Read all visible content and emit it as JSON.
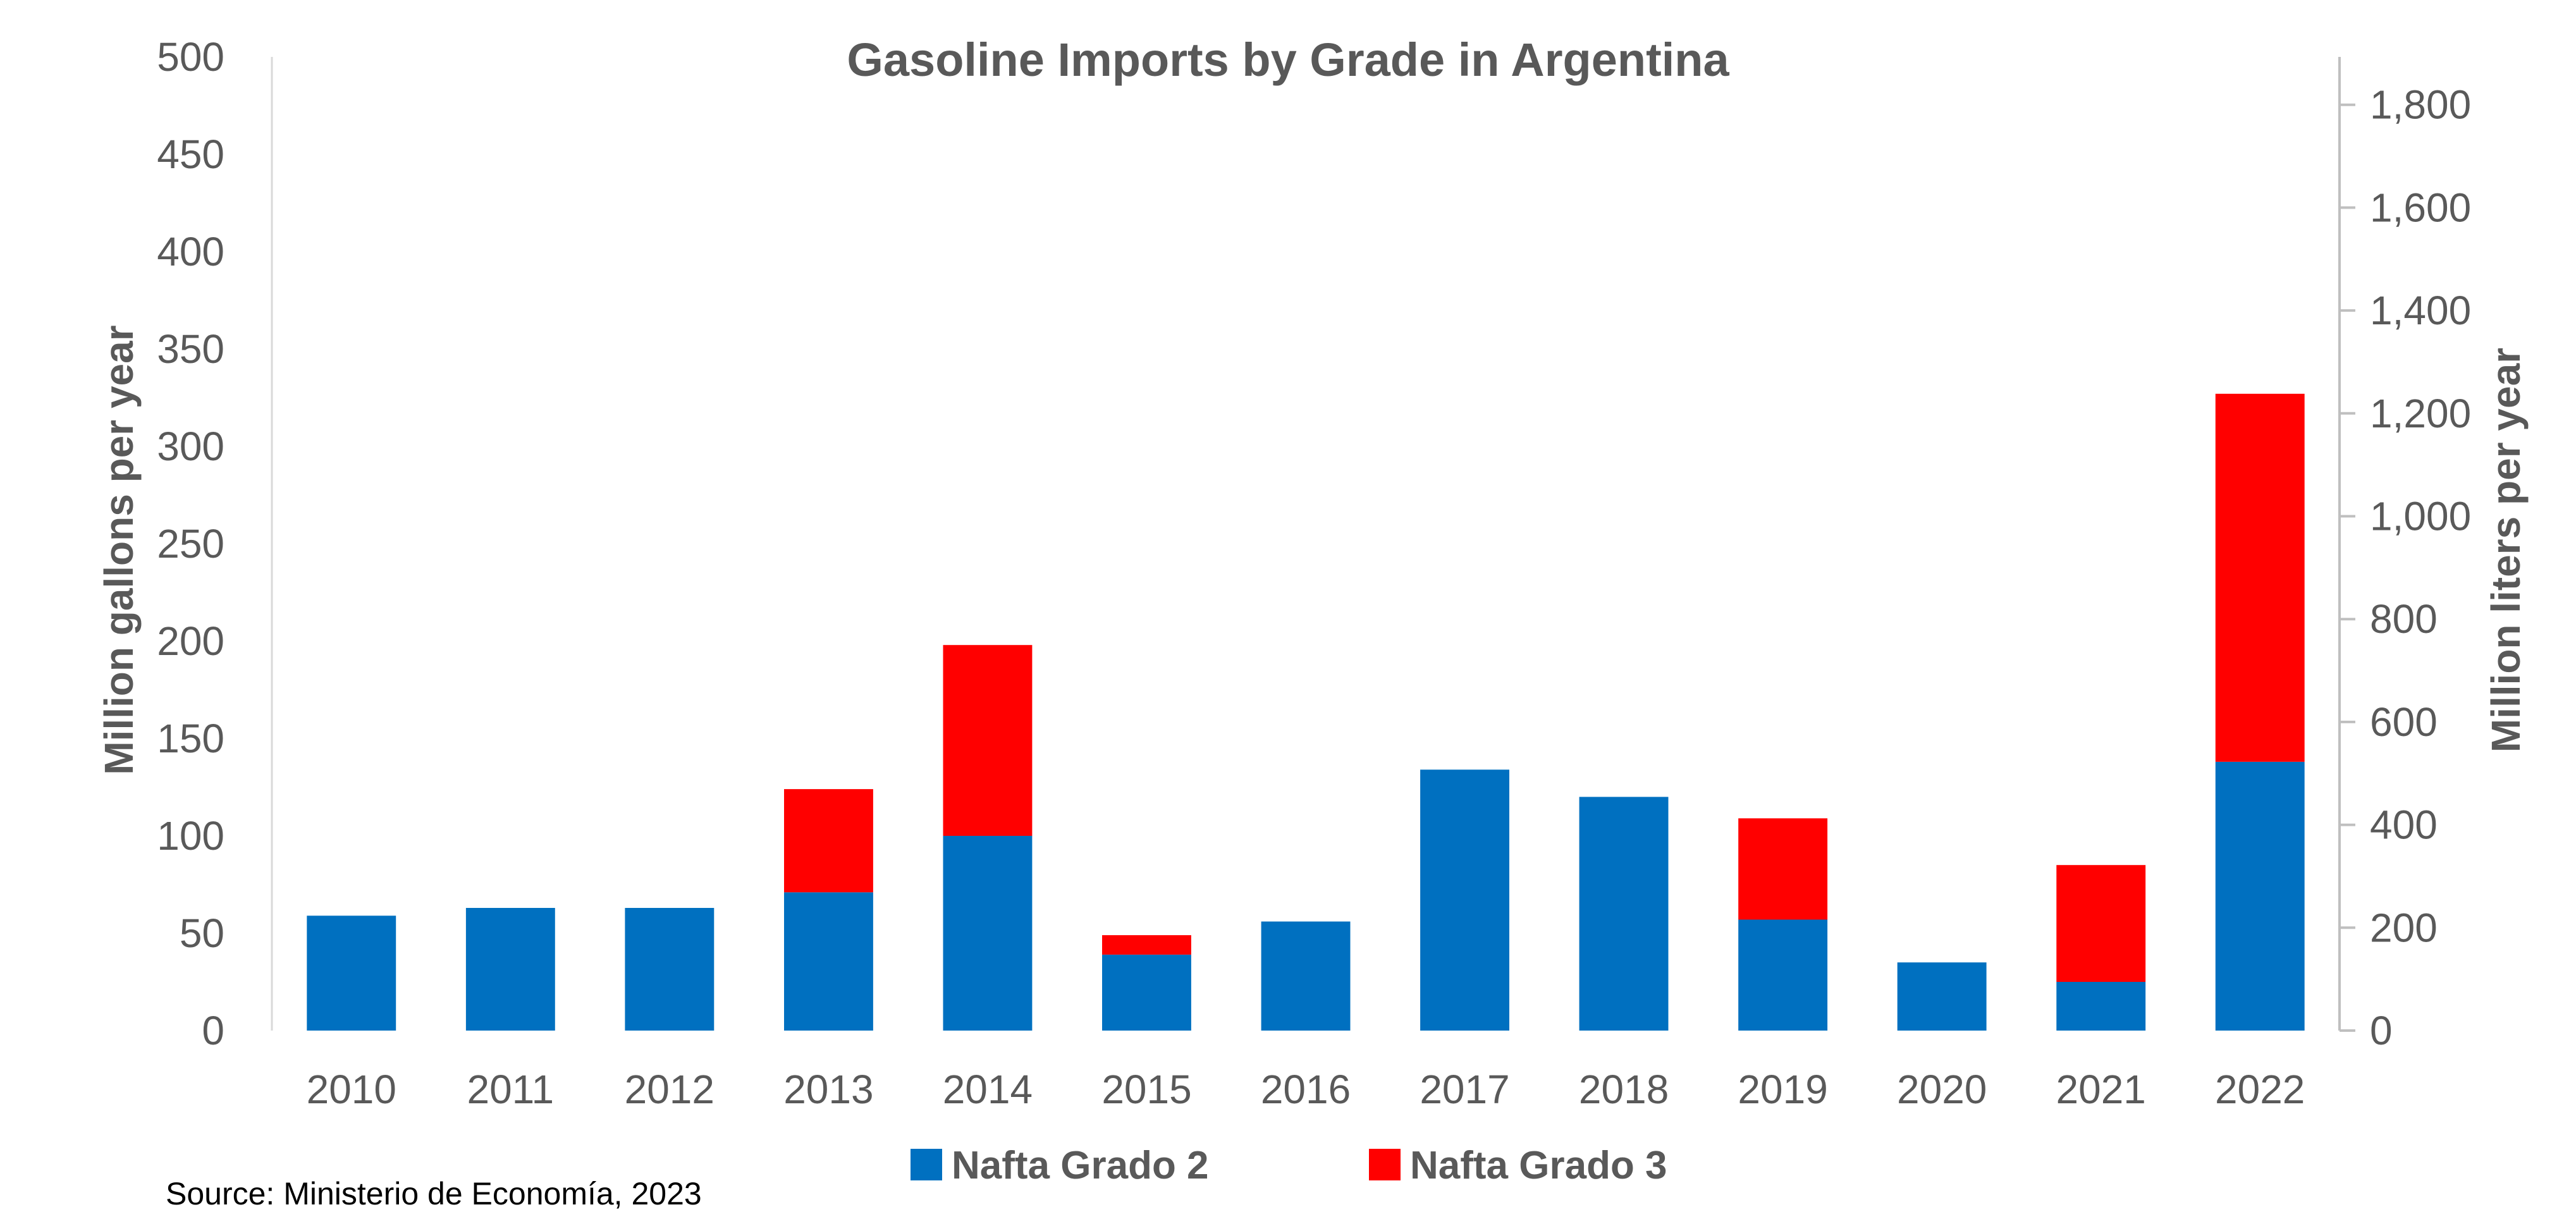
{
  "chart_data": {
    "type": "bar",
    "stacked": true,
    "title": "Gasoline Imports by Grade in Argentina",
    "ylabel": "Million gallons per year",
    "y2label": "Million liters per year",
    "categories": [
      "2010",
      "2011",
      "2012",
      "2013",
      "2014",
      "2015",
      "2016",
      "2017",
      "2018",
      "2019",
      "2020",
      "2021",
      "2022"
    ],
    "series": [
      {
        "name": "Nafta Grado 2",
        "color": "#0070C0",
        "values": [
          59,
          63,
          63,
          71,
          100,
          39,
          56,
          134,
          120,
          57,
          35,
          25,
          138
        ]
      },
      {
        "name": "Nafta Grado 3",
        "color": "#FF0000",
        "values": [
          0,
          0,
          0,
          53,
          98,
          10,
          0,
          0,
          0,
          52,
          0,
          60,
          189
        ]
      }
    ],
    "ylim": [
      0,
      500
    ],
    "yticks": [
      "0",
      "50",
      "100",
      "150",
      "200",
      "250",
      "300",
      "350",
      "400",
      "450",
      "500"
    ],
    "y2lim": [
      0,
      1893
    ],
    "y2ticks": [
      {
        "v": 0,
        "label": "0"
      },
      {
        "v": 200,
        "label": "200"
      },
      {
        "v": 400,
        "label": "400"
      },
      {
        "v": 600,
        "label": "600"
      },
      {
        "v": 800,
        "label": "800"
      },
      {
        "v": 1000,
        "label": "1,000"
      },
      {
        "v": 1200,
        "label": "1,200"
      },
      {
        "v": 1400,
        "label": "1,400"
      },
      {
        "v": 1600,
        "label": "1,600"
      },
      {
        "v": 1800,
        "label": "1,800"
      }
    ],
    "legend_position": "bottom"
  },
  "source": "Source: Ministerio de Economía, 2023"
}
